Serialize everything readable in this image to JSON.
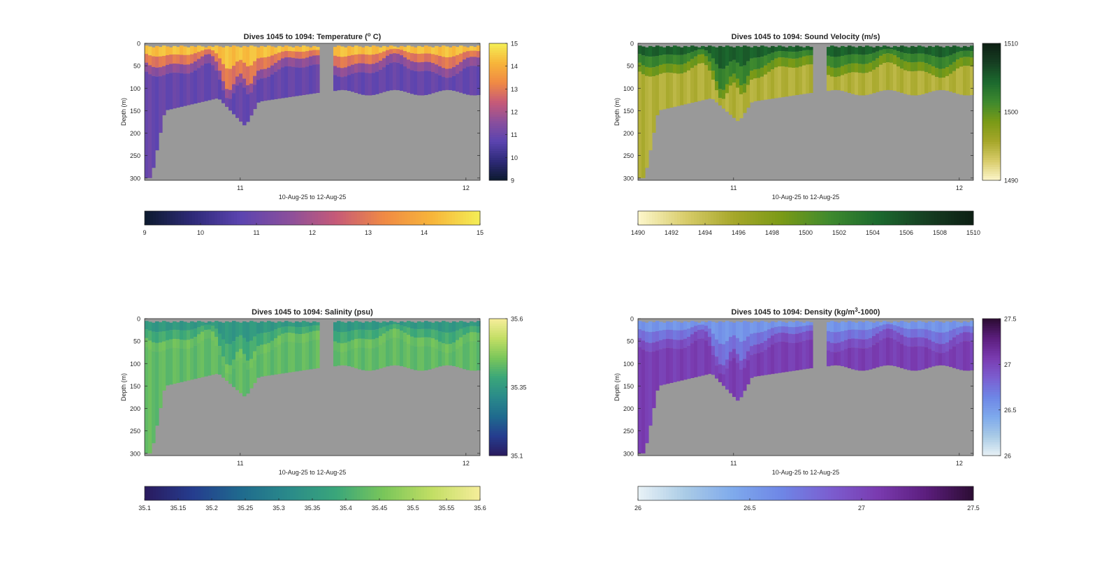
{
  "figure": {
    "background": "#ffffff",
    "missing_color": "#999999"
  },
  "chart_data": [
    {
      "type": "heatmap",
      "title": "Dives 1045 to 1094: Temperature (",
      "title_sup": "o",
      "title_end": " C)",
      "xlabel": "10-Aug-25 to 12-Aug-25",
      "ylabel": "Depth (m)",
      "x_ticks": [
        "11",
        "12"
      ],
      "y_ticks": [
        "0",
        "50",
        "100",
        "150",
        "200",
        "250",
        "300"
      ],
      "ylim": [
        0,
        305
      ],
      "y_reversed": true,
      "colormap": [
        "#0c1a2e",
        "#2e2a78",
        "#5b44b0",
        "#8a4f9c",
        "#c65a78",
        "#f08a44",
        "#f7b53a",
        "#f4ee55"
      ],
      "clim": [
        9,
        15
      ],
      "colorbar_ticks": [
        "9",
        "10",
        "11",
        "12",
        "13",
        "14",
        "15"
      ],
      "profile_depth": {
        "start": 300,
        "at_11": 125,
        "max_dip": 185,
        "after_gap": 110
      },
      "values": {
        "surface": 14.3,
        "thermocline": 11.6,
        "deep": 10.9
      }
    },
    {
      "type": "heatmap",
      "title": "Dives 1045 to 1094: Sound Velocity (m/s)",
      "title_sup": "",
      "title_end": "",
      "xlabel": "10-Aug-25 to 12-Aug-25",
      "ylabel": "Depth (m)",
      "x_ticks": [
        "11",
        "12"
      ],
      "y_ticks": [
        "0",
        "50",
        "100",
        "150",
        "200",
        "250",
        "300"
      ],
      "ylim": [
        0,
        305
      ],
      "y_reversed": true,
      "colormap": [
        "#fdf7cc",
        "#d8cc6a",
        "#a6a72a",
        "#7a9a16",
        "#3f8a2e",
        "#1c6a2e",
        "#163f22",
        "#0d1f14"
      ],
      "clim": [
        1490,
        1510
      ],
      "colorbar_ticks": [
        "1490",
        "1492",
        "1494",
        "1496",
        "1498",
        "1500",
        "1502",
        "1504",
        "1506",
        "1508",
        "1510"
      ],
      "profile_depth": {
        "start": 300,
        "at_11": 125,
        "max_dip": 175,
        "after_gap": 110
      },
      "values": {
        "surface": 1505,
        "thermocline": 1499,
        "deep": 1495
      }
    },
    {
      "type": "heatmap",
      "title": "Dives 1045 to 1094: Salinity (psu)",
      "title_sup": "",
      "title_end": "",
      "xlabel": "10-Aug-25 to 12-Aug-25",
      "ylabel": "Depth (m)",
      "x_ticks": [
        "11",
        "12"
      ],
      "y_ticks": [
        "0",
        "50",
        "100",
        "150",
        "200",
        "250",
        "300"
      ],
      "ylim": [
        0,
        305
      ],
      "y_reversed": true,
      "colormap": [
        "#2a1a5e",
        "#253c8e",
        "#1f6a8e",
        "#2a8a8a",
        "#3aa67a",
        "#7ac65a",
        "#c2de64",
        "#f6ed9a"
      ],
      "clim": [
        35.1,
        35.6
      ],
      "colorbar_ticks": [
        "35.1",
        "35.15",
        "35.2",
        "35.25",
        "35.3",
        "35.35",
        "35.4",
        "35.45",
        "35.5",
        "35.55",
        "35.6"
      ],
      "profile_depth": {
        "start": 300,
        "at_11": 125,
        "max_dip": 175,
        "after_gap": 110
      },
      "values": {
        "surface": 35.35,
        "thermocline": 35.44,
        "deep": 35.43
      }
    },
    {
      "type": "heatmap",
      "title": "Dives 1045 to 1094: Density (kg/m",
      "title_sup": "3",
      "title_end": "-1000)",
      "xlabel": "10-Aug-25 to 12-Aug-25",
      "ylabel": "Depth (m)",
      "x_ticks": [
        "11",
        "12"
      ],
      "y_ticks": [
        "0",
        "50",
        "100",
        "150",
        "200",
        "250",
        "300"
      ],
      "ylim": [
        0,
        305
      ],
      "y_reversed": true,
      "colormap": [
        "#e9f2f6",
        "#a9cbe6",
        "#7ea9ec",
        "#6e86e6",
        "#7b5ed0",
        "#7a3bb0",
        "#5c1e7e",
        "#2c0c33"
      ],
      "clim": [
        26,
        27.5
      ],
      "colorbar_ticks": [
        "26",
        "26.5",
        "27",
        "27.5"
      ],
      "profile_depth": {
        "start": 300,
        "at_11": 125,
        "max_dip": 185,
        "after_gap": 110
      },
      "values": {
        "surface": 26.55,
        "thermocline": 26.95,
        "deep": 27.05
      }
    }
  ]
}
